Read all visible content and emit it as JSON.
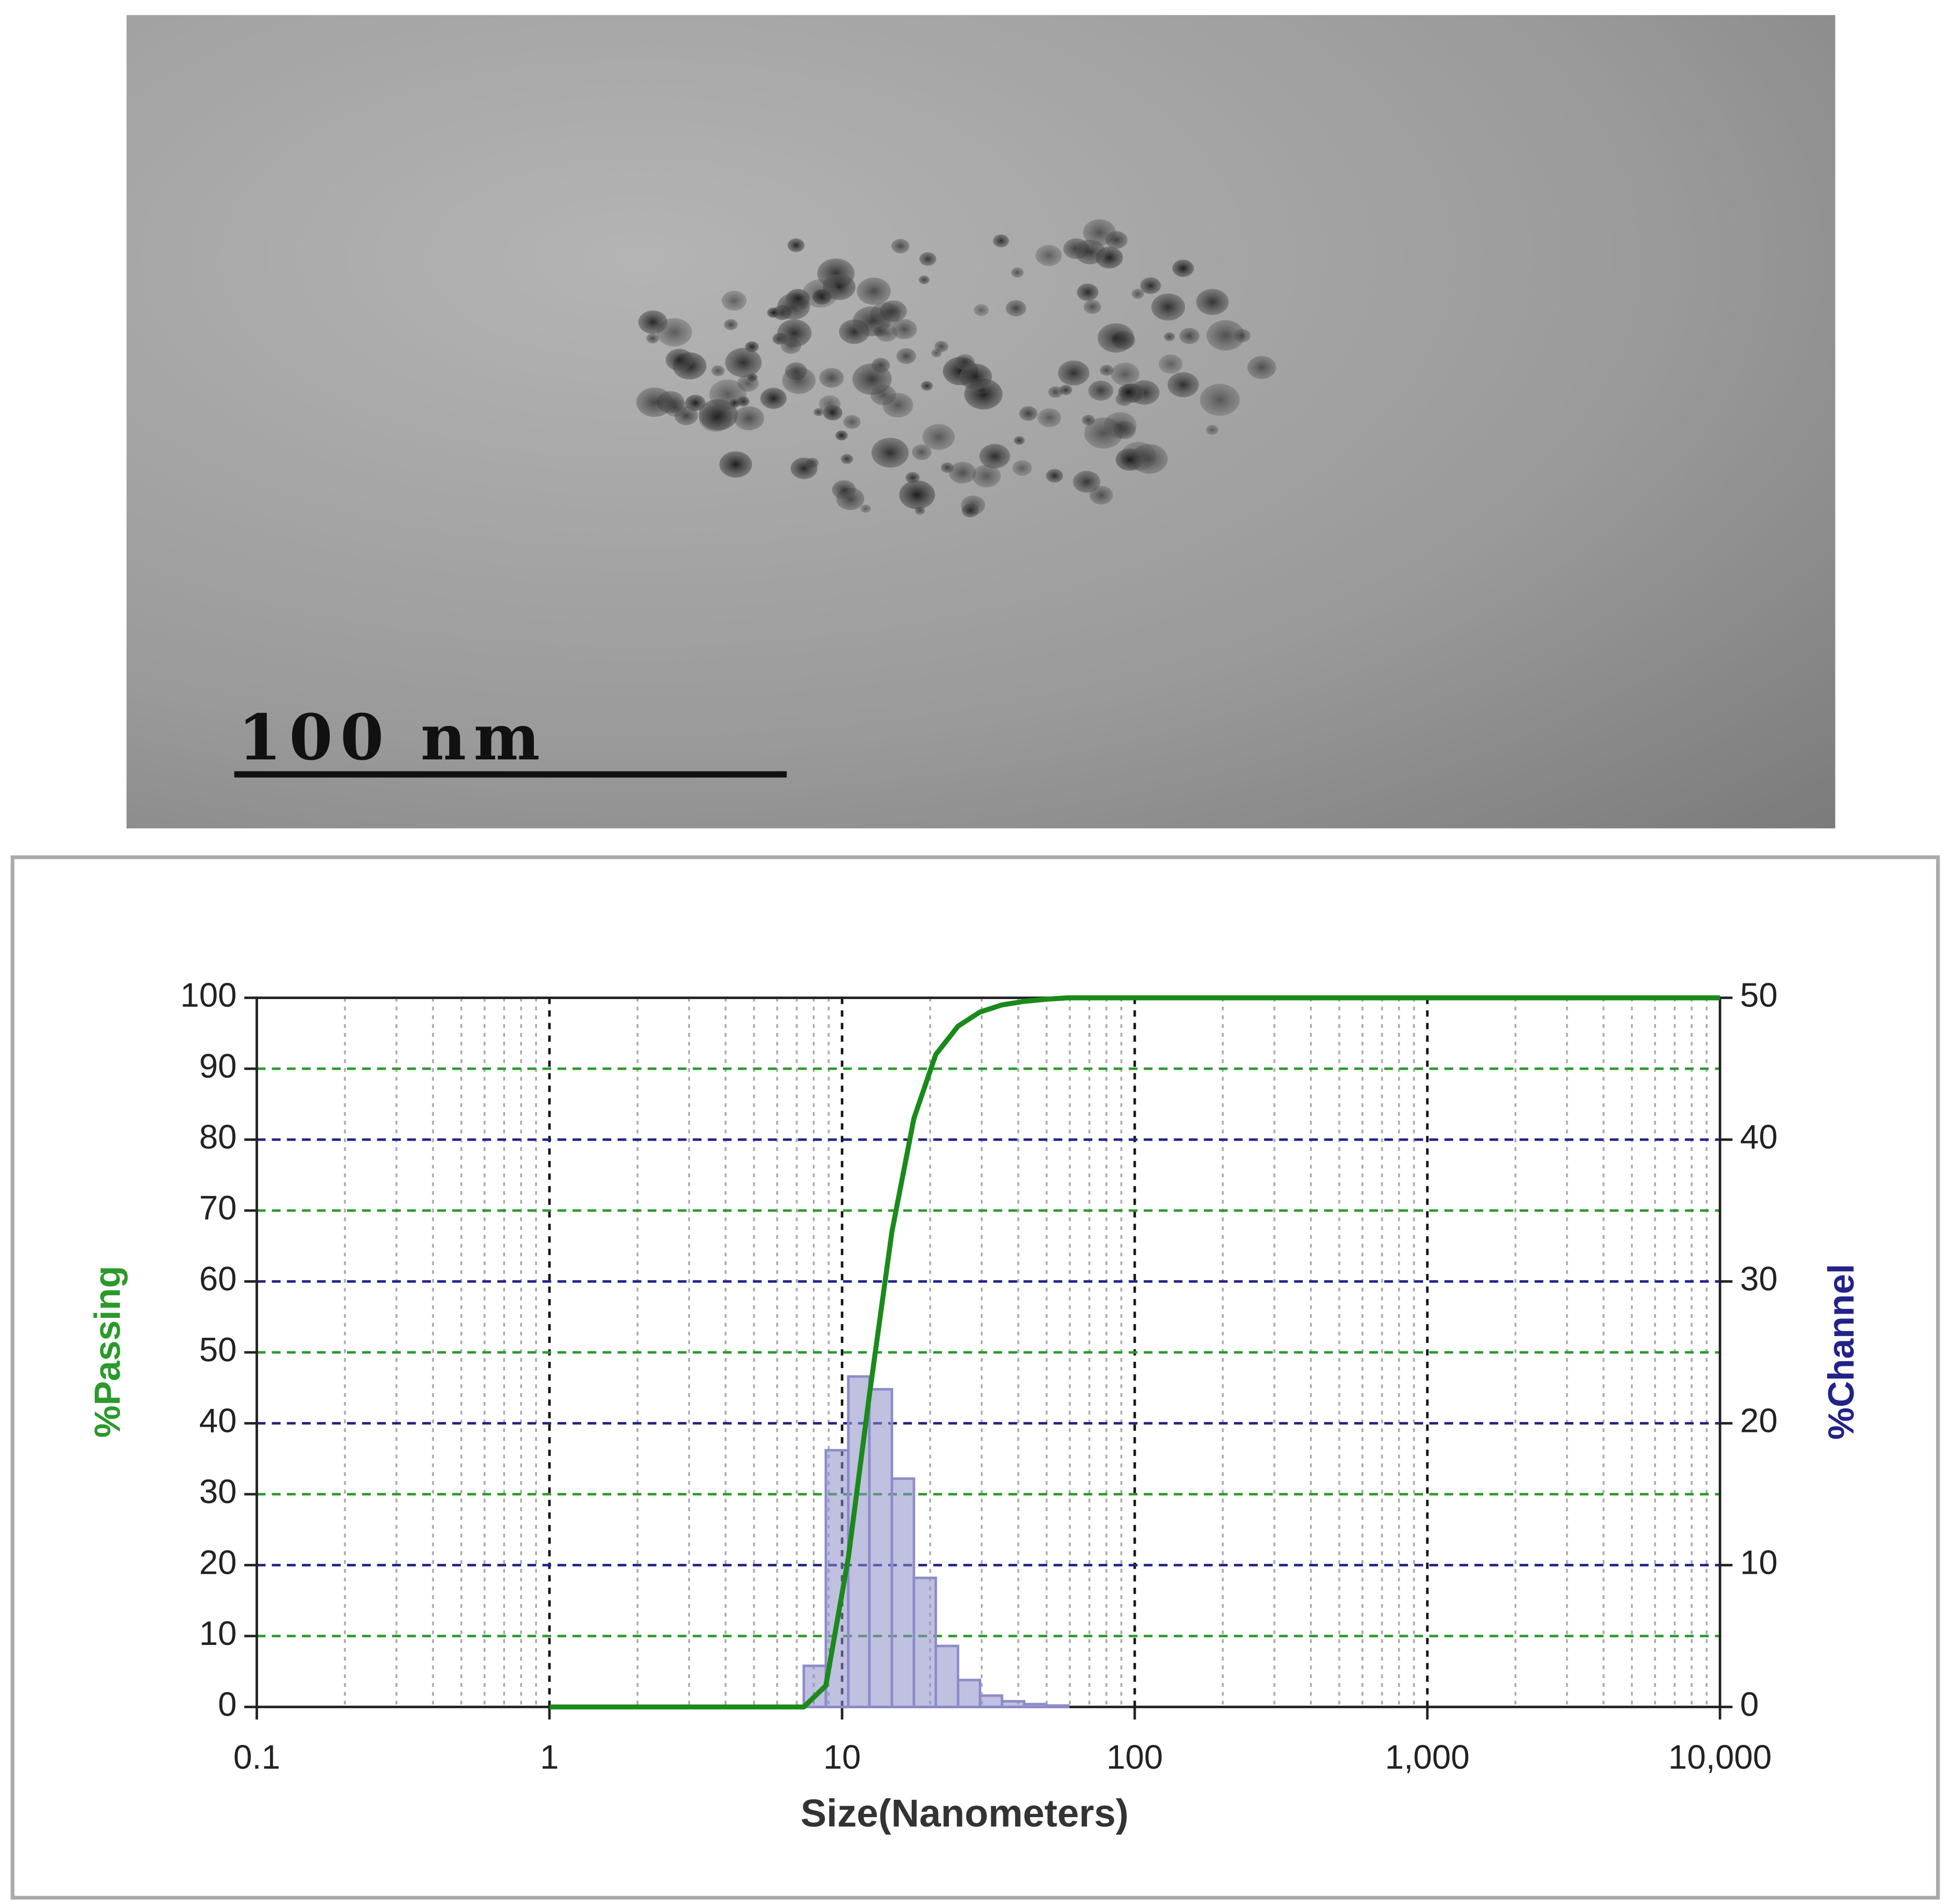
{
  "image": {
    "scale_bar": "100 nm"
  },
  "chart_data": {
    "type": "combo",
    "xscale": "log",
    "xlabel": "Size(Nanometers)",
    "ylabel": "%Passing",
    "y2label": "%Channel",
    "xlim": [
      0.1,
      10000
    ],
    "xticks": [
      0.1,
      1,
      10,
      100,
      {
        "value": 1000,
        "label": "1,000"
      },
      {
        "value": 10000,
        "label": "10,000"
      }
    ],
    "ylim": [
      0,
      100
    ],
    "yticks": [
      0,
      10,
      20,
      30,
      40,
      50,
      60,
      70,
      80,
      90,
      100
    ],
    "y2lim": [
      0,
      50
    ],
    "y2ticks": [
      0,
      10,
      20,
      30,
      40,
      50
    ],
    "grid": true,
    "series": [
      {
        "type": "line",
        "color": "#1a8a1a",
        "x": [
          1,
          7.4,
          8.8,
          10.5,
          12.4,
          14.8,
          17.6,
          20.9,
          24.9,
          29.6,
          35.2,
          41.9,
          49.8,
          59.2,
          10000
        ],
        "values": [
          0,
          0,
          3,
          21,
          44,
          67,
          83,
          92,
          96,
          98,
          99,
          99.5,
          99.8,
          100,
          100
        ]
      },
      {
        "type": "histogram",
        "color": "#8c8cc8",
        "axis": "y2",
        "bins": [
          7.4,
          8.8,
          10.5,
          12.4,
          14.8,
          17.6,
          20.9,
          24.9,
          29.6,
          35.2,
          41.9,
          49.8,
          59.2
        ],
        "values": [
          2.9,
          18.1,
          23.3,
          22.4,
          16.1,
          9.1,
          4.3,
          1.9,
          0.8,
          0.4,
          0.2,
          0.1
        ]
      }
    ]
  }
}
